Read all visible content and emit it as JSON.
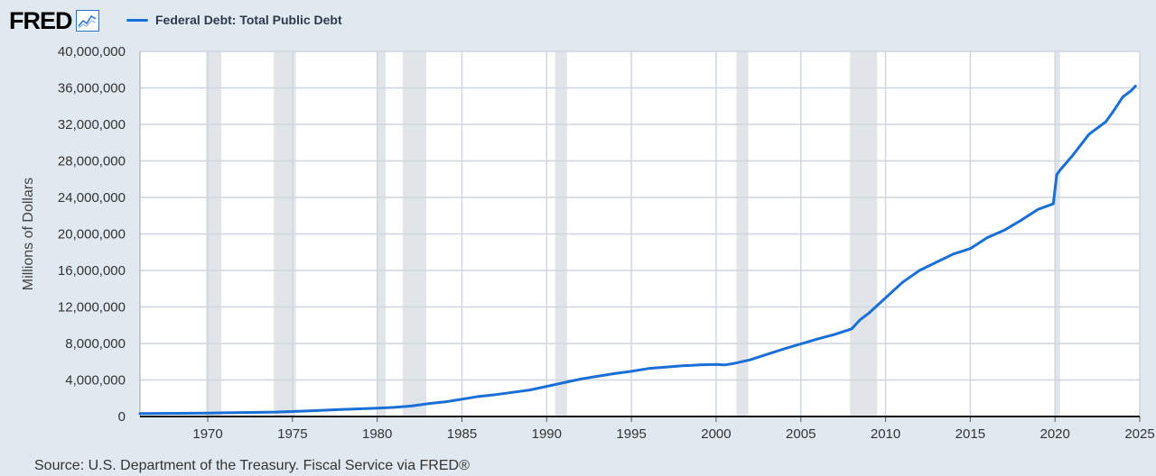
{
  "header": {
    "logo": "FRED",
    "logo_icon": "line-chart-icon"
  },
  "legend": {
    "label": "Federal Debt: Total Public Debt",
    "color": "#1a6fd6"
  },
  "source": "Source: U.S. Department of the Treasury. Fiscal Service via FRED®",
  "colors": {
    "background": "#e1e9f0",
    "plot": "#ffffff",
    "recession": "#e1e5ea",
    "grid": "#cfd6df",
    "line": "#1a6fd6"
  },
  "chart_data": {
    "type": "line",
    "title": "",
    "xlabel": "",
    "ylabel": "Millions of Dollars",
    "xlim": [
      1966,
      2025
    ],
    "ylim": [
      0,
      40000000
    ],
    "grid": true,
    "legend_position": "top-left",
    "y_ticks": [
      0,
      4000000,
      8000000,
      12000000,
      16000000,
      20000000,
      24000000,
      28000000,
      32000000,
      36000000,
      40000000
    ],
    "y_tick_labels": [
      "0",
      "4,000,000",
      "8,000,000",
      "12,000,000",
      "16,000,000",
      "20,000,000",
      "24,000,000",
      "28,000,000",
      "32,000,000",
      "36,000,000",
      "40,000,000"
    ],
    "x_ticks": [
      1970,
      1975,
      1980,
      1985,
      1990,
      1995,
      2000,
      2005,
      2010,
      2015,
      2020,
      2025
    ],
    "x_tick_labels": [
      "1970",
      "1975",
      "1980",
      "1985",
      "1990",
      "1995",
      "2000",
      "2005",
      "2010",
      "2015",
      "2020",
      "2025"
    ],
    "recessions": [
      [
        1969.9,
        1970.8
      ],
      [
        1973.9,
        1975.2
      ],
      [
        1980.0,
        1980.5
      ],
      [
        1981.5,
        1982.9
      ],
      [
        1990.5,
        1991.2
      ],
      [
        2001.2,
        2001.9
      ],
      [
        2007.9,
        2009.5
      ],
      [
        2020.0,
        2020.3
      ]
    ],
    "series": [
      {
        "name": "Federal Debt: Total Public Debt",
        "x": [
          1966,
          1968,
          1970,
          1972,
          1974,
          1976,
          1978,
          1980,
          1981,
          1982,
          1983,
          1984,
          1985,
          1986,
          1987,
          1988,
          1989,
          1990,
          1991,
          1992,
          1993,
          1994,
          1995,
          1996,
          1997,
          1998,
          1999,
          2000,
          2000.5,
          2001,
          2002,
          2003,
          2004,
          2005,
          2006,
          2007,
          2008,
          2008.5,
          2009,
          2010,
          2011,
          2012,
          2013,
          2014,
          2015,
          2016,
          2017,
          2018,
          2019,
          2019.9,
          2020.1,
          2020.3,
          2021,
          2022,
          2023,
          2023.5,
          2024,
          2024.5,
          2024.75
        ],
        "y": [
          320000,
          350000,
          380000,
          430000,
          480000,
          620000,
          780000,
          910000,
          1000000,
          1150000,
          1400000,
          1600000,
          1900000,
          2200000,
          2400000,
          2650000,
          2900000,
          3300000,
          3700000,
          4100000,
          4400000,
          4700000,
          4950000,
          5250000,
          5400000,
          5550000,
          5650000,
          5700000,
          5650000,
          5800000,
          6200000,
          6800000,
          7400000,
          7950000,
          8500000,
          9000000,
          9600000,
          10600000,
          11300000,
          13000000,
          14700000,
          16000000,
          16900000,
          17800000,
          18400000,
          19600000,
          20400000,
          21500000,
          22700000,
          23300000,
          26500000,
          27000000,
          28500000,
          30900000,
          32300000,
          33600000,
          35000000,
          35700000,
          36200000
        ]
      }
    ]
  }
}
